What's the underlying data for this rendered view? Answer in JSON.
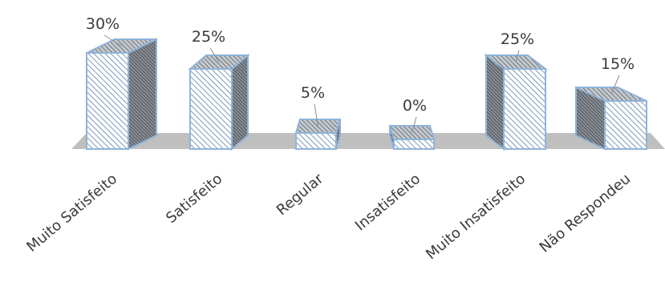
{
  "chart_data": {
    "type": "bar",
    "title": "",
    "xlabel": "",
    "ylabel": "",
    "categories": [
      "Muito Satisfeito",
      "Satisfeito",
      "Regular",
      "Insatisfeito",
      "Muito Insatisfeito",
      "Não Respondeu"
    ],
    "values": [
      30,
      25,
      5,
      0,
      25,
      15
    ],
    "data_labels": [
      "30%",
      "25%",
      "5%",
      "0%",
      "25%",
      "15%"
    ],
    "unit": "%",
    "ylim": [
      0,
      30
    ],
    "grid": false,
    "legend": "none",
    "style": "3d-columns",
    "colors": {
      "floor": "#bfbfbf",
      "edge": "#8fb3d9",
      "hatch_light": "#5a7fa6",
      "hatch_dark": "#4a5058",
      "label_text": "#3a3a3a"
    }
  }
}
